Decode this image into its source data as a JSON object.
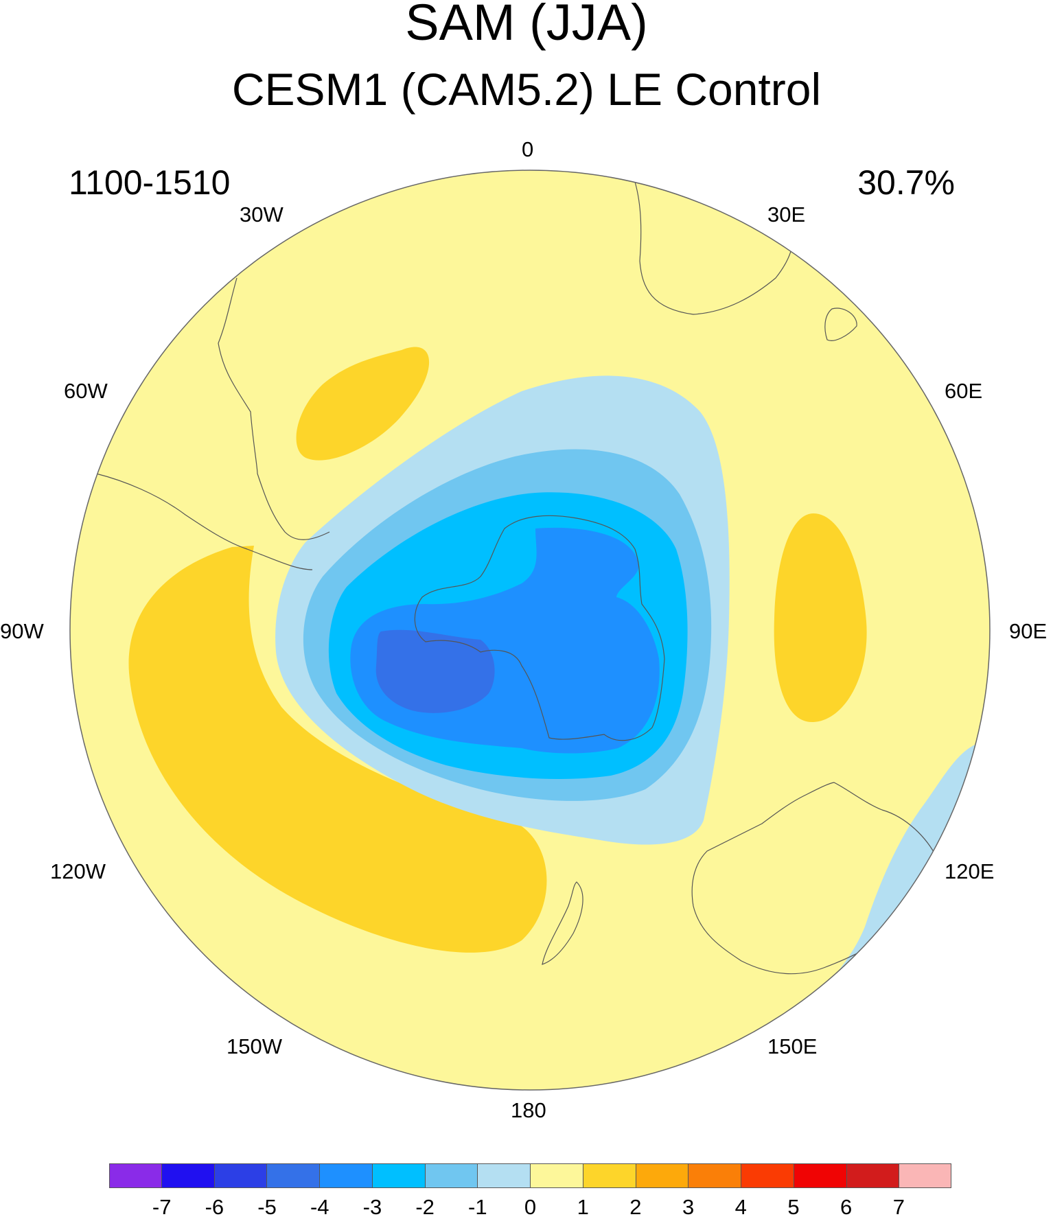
{
  "title": "SAM (JJA)",
  "subtitle": "CESM1 (CAM5.2) LE Control",
  "period": "1100-1510",
  "variance_explained": "30.7%",
  "longitude_labels": {
    "top": "0",
    "e30": "30E",
    "e60": "60E",
    "e90": "90E",
    "e120": "120E",
    "e150": "150E",
    "bottom": "180",
    "w150": "150W",
    "w120": "120W",
    "w90": "90W",
    "w60": "60W",
    "w30": "30W"
  },
  "colorbar": {
    "colors": [
      "#8a2be8",
      "#2010f0",
      "#2c3fe6",
      "#3471e8",
      "#1e90ff",
      "#00bfff",
      "#70c6f0",
      "#b4dff2",
      "#fdf79a",
      "#fdd52a",
      "#fda90b",
      "#fa7f08",
      "#fa3b03",
      "#f00404",
      "#d21c1c",
      "#fab6b6"
    ],
    "labels": [
      "-7",
      "-6",
      "-5",
      "-4",
      "-3",
      "-2",
      "-1",
      "0",
      "1",
      "2",
      "3",
      "4",
      "5",
      "6",
      "7"
    ]
  },
  "fill_colors": {
    "background": "#fdf79a",
    "pos1": "#fdd52a",
    "neg1": "#b4dff2",
    "neg2": "#70c6f0",
    "neg3": "#00bfff",
    "neg4": "#1e90ff",
    "neg5": "#3471e8"
  }
}
